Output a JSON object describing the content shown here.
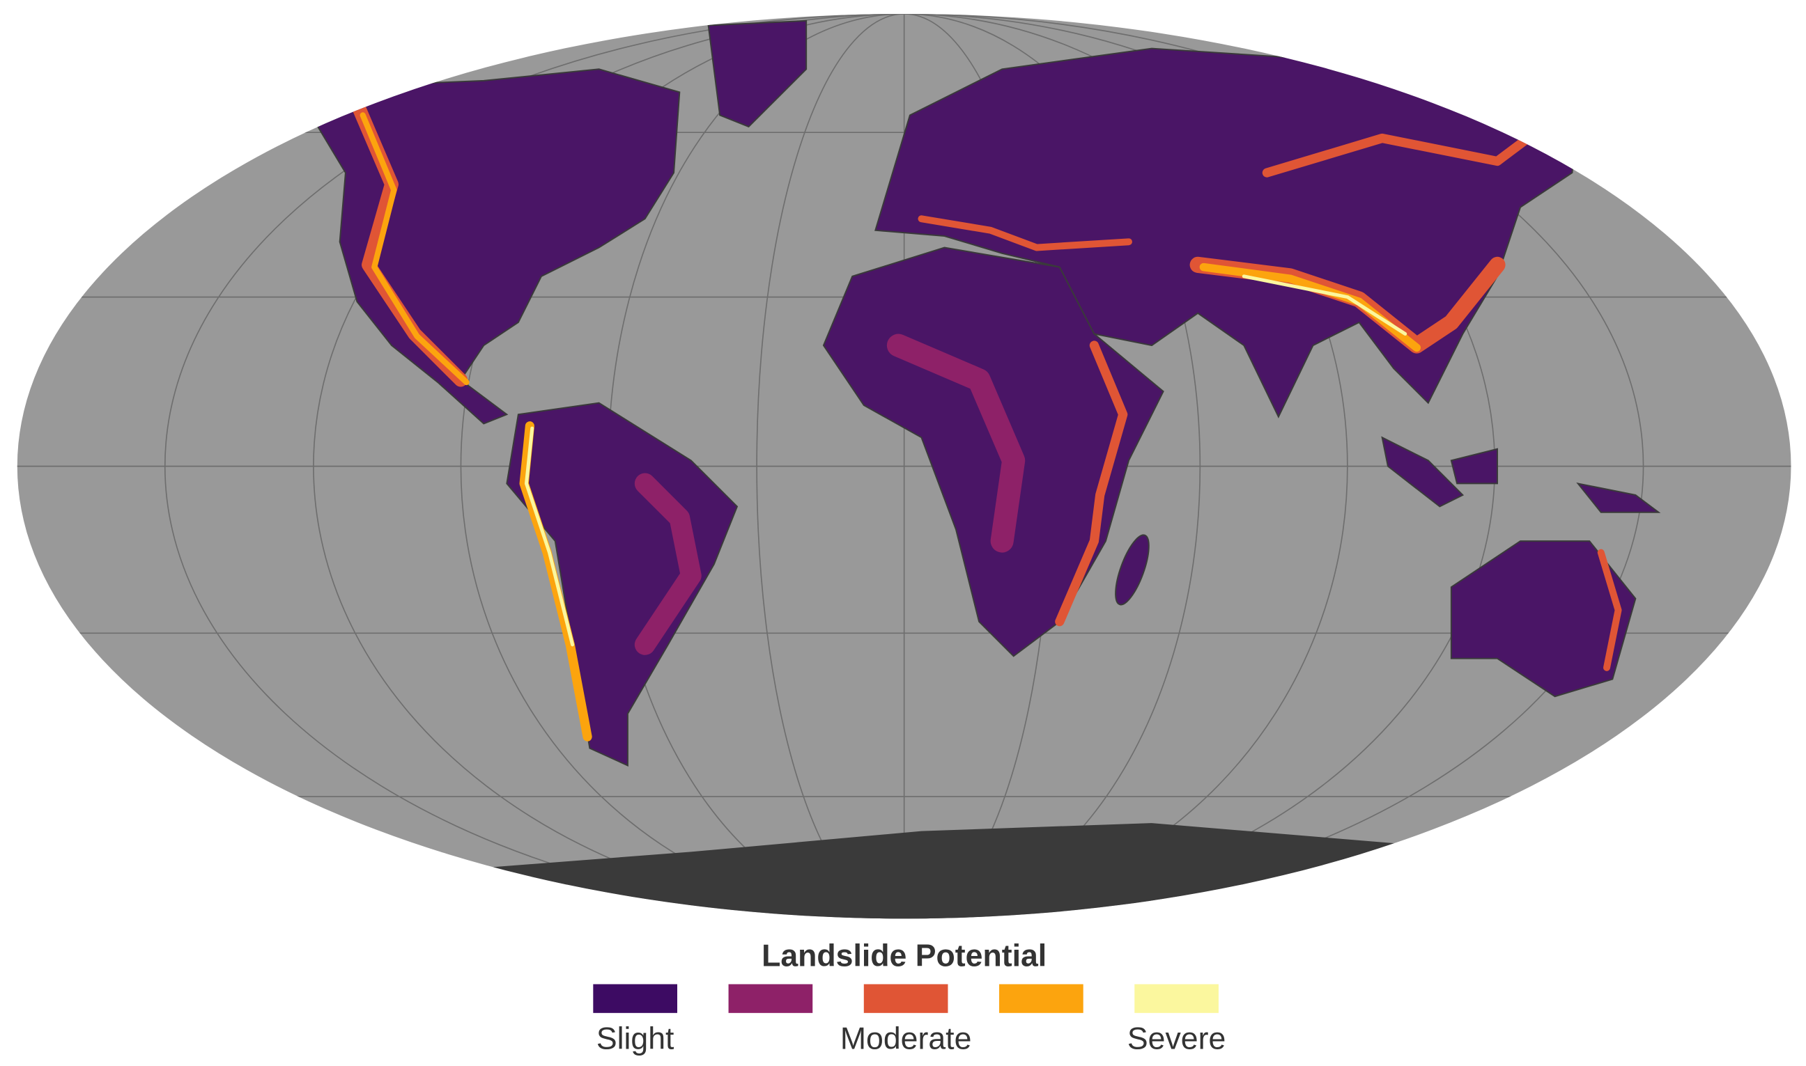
{
  "legend": {
    "title": "Landslide Potential",
    "items": [
      {
        "color": "#3d0b63",
        "label": "Slight"
      },
      {
        "color": "#8e2168",
        "label": null
      },
      {
        "color": "#e05535",
        "label": "Moderate"
      },
      {
        "color": "#fca40e",
        "label": null
      },
      {
        "color": "#fbf79e",
        "label": "Severe"
      }
    ]
  }
}
